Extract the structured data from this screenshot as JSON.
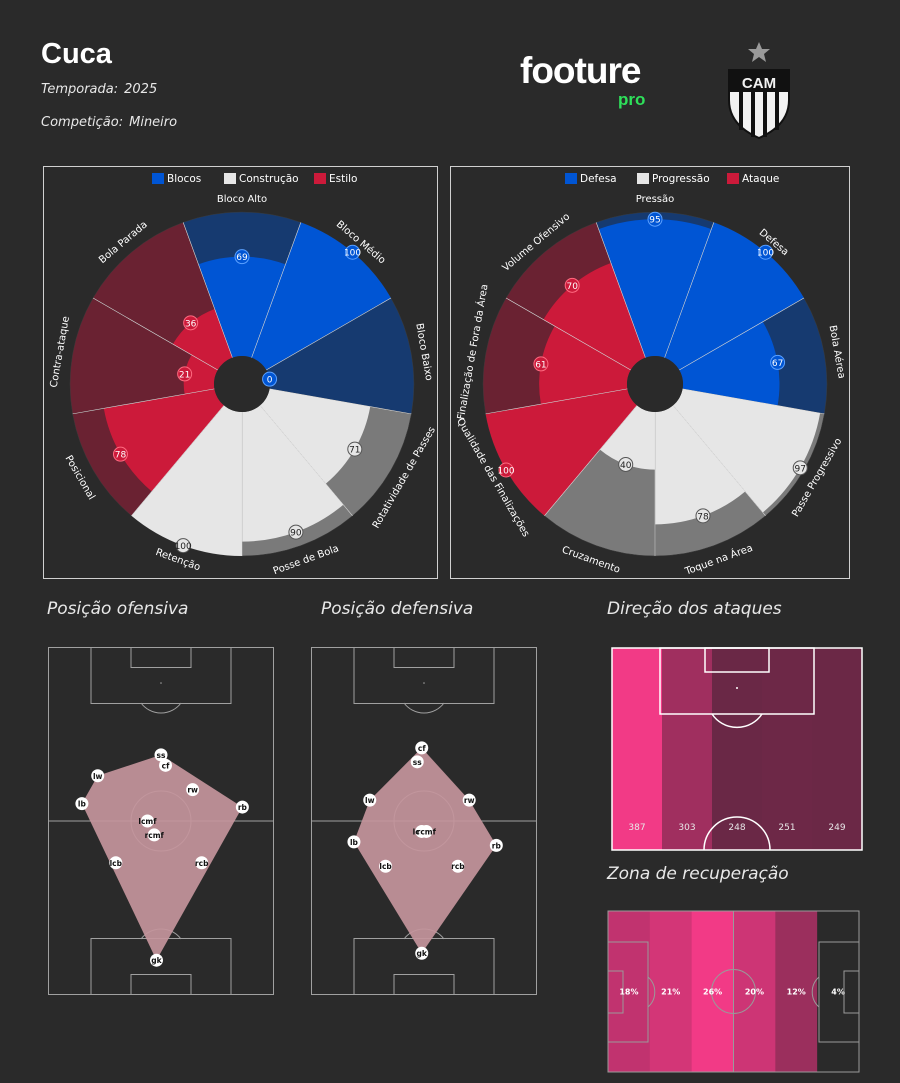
{
  "header": {
    "coach_name": "Cuca",
    "season_label": "Temporada:",
    "season_value": "2025",
    "competition_label": "Competição:",
    "competition_value": "Mineiro",
    "logo_text": "footure",
    "logo_sub": "pro",
    "crest_text": "CAM"
  },
  "colors": {
    "background": "#2a2a2a",
    "blue": "#0055d4",
    "blue_dark": "#163a70",
    "red": "#cc1a3a",
    "red_dark": "#6a2232",
    "grey": "#e6e6e6",
    "grey_dark": "#7a7a7a",
    "accent_green": "#2ee05a",
    "hull": "#c4959c",
    "pink_strong": "#f23a86"
  },
  "chart_data": [
    {
      "type": "polar_bar",
      "legend": [
        "Blocos",
        "Construção",
        "Estilo"
      ],
      "max": 100,
      "categories": [
        {
          "label": "Bloco Alto",
          "value": 69,
          "group": "Blocos"
        },
        {
          "label": "Bloco Médio",
          "value": 100,
          "group": "Blocos"
        },
        {
          "label": "Bloco Baixo",
          "value": 0,
          "group": "Blocos"
        },
        {
          "label": "Rotatividade de Passes",
          "value": 71,
          "group": "Construção"
        },
        {
          "label": "Posse de Bola",
          "value": 90,
          "group": "Construção"
        },
        {
          "label": "Retenção",
          "value": 100,
          "group": "Construção"
        },
        {
          "label": "Posicional",
          "value": 78,
          "group": "Estilo"
        },
        {
          "label": "Contra-ataque",
          "value": 21,
          "group": "Estilo"
        },
        {
          "label": "Bola Parada",
          "value": 36,
          "group": "Estilo"
        }
      ]
    },
    {
      "type": "polar_bar",
      "legend": [
        "Defesa",
        "Progressão",
        "Ataque"
      ],
      "max": 100,
      "categories": [
        {
          "label": "Pressão",
          "value": 95,
          "group": "Defesa"
        },
        {
          "label": "Defesa",
          "value": 100,
          "group": "Defesa"
        },
        {
          "label": "Bola Aérea",
          "value": 67,
          "group": "Defesa"
        },
        {
          "label": "Passe Progressivo",
          "value": 97,
          "group": "Progressão"
        },
        {
          "label": "Toque na Área",
          "value": 78,
          "group": "Progressão"
        },
        {
          "label": "Cruzamento",
          "value": 40,
          "group": "Progressão"
        },
        {
          "label": "Qualidade das Finalizações",
          "value": 100,
          "group": "Ataque"
        },
        {
          "label": "Finalização de Fora da Área",
          "value": 61,
          "group": "Ataque"
        },
        {
          "label": "Volume Ofensivo",
          "value": 70,
          "group": "Ataque"
        }
      ]
    },
    {
      "type": "scatter",
      "title": "Posição ofensiva",
      "xlim": [
        0,
        100
      ],
      "ylim": [
        0,
        100
      ],
      "points": [
        {
          "label": "ss",
          "x": 50,
          "y": 69
        },
        {
          "label": "cf",
          "x": 52,
          "y": 66
        },
        {
          "label": "lw",
          "x": 22,
          "y": 63
        },
        {
          "label": "rw",
          "x": 64,
          "y": 59
        },
        {
          "label": "lb",
          "x": 15,
          "y": 55
        },
        {
          "label": "rb",
          "x": 86,
          "y": 54
        },
        {
          "label": "lcmf",
          "x": 44,
          "y": 50
        },
        {
          "label": "rcmf",
          "x": 47,
          "y": 46
        },
        {
          "label": "lcb",
          "x": 30,
          "y": 38
        },
        {
          "label": "rcb",
          "x": 68,
          "y": 38
        },
        {
          "label": "gk",
          "x": 48,
          "y": 10
        }
      ]
    },
    {
      "type": "scatter",
      "title": "Posição defensiva",
      "xlim": [
        0,
        100
      ],
      "ylim": [
        0,
        100
      ],
      "points": [
        {
          "label": "cf",
          "x": 49,
          "y": 71
        },
        {
          "label": "ss",
          "x": 47,
          "y": 67
        },
        {
          "label": "lw",
          "x": 26,
          "y": 56
        },
        {
          "label": "rw",
          "x": 70,
          "y": 56
        },
        {
          "label": "lcmf",
          "x": 49,
          "y": 47
        },
        {
          "label": "rcmf",
          "x": 51,
          "y": 47
        },
        {
          "label": "lb",
          "x": 19,
          "y": 44
        },
        {
          "label": "rb",
          "x": 82,
          "y": 43
        },
        {
          "label": "lcb",
          "x": 33,
          "y": 37
        },
        {
          "label": "rcb",
          "x": 65,
          "y": 37
        },
        {
          "label": "gk",
          "x": 49,
          "y": 12
        }
      ]
    },
    {
      "type": "heatmap",
      "title": "Direção dos ataques",
      "categories": [
        "1",
        "2",
        "3",
        "4",
        "5"
      ],
      "values": [
        387,
        303,
        248,
        251,
        249
      ]
    },
    {
      "type": "heatmap",
      "title": "Zona de recuperação",
      "categories": [
        "1",
        "2",
        "3",
        "4",
        "5",
        "6"
      ],
      "values": [
        "18%",
        "21%",
        "26%",
        "20%",
        "12%",
        "4%"
      ]
    }
  ]
}
